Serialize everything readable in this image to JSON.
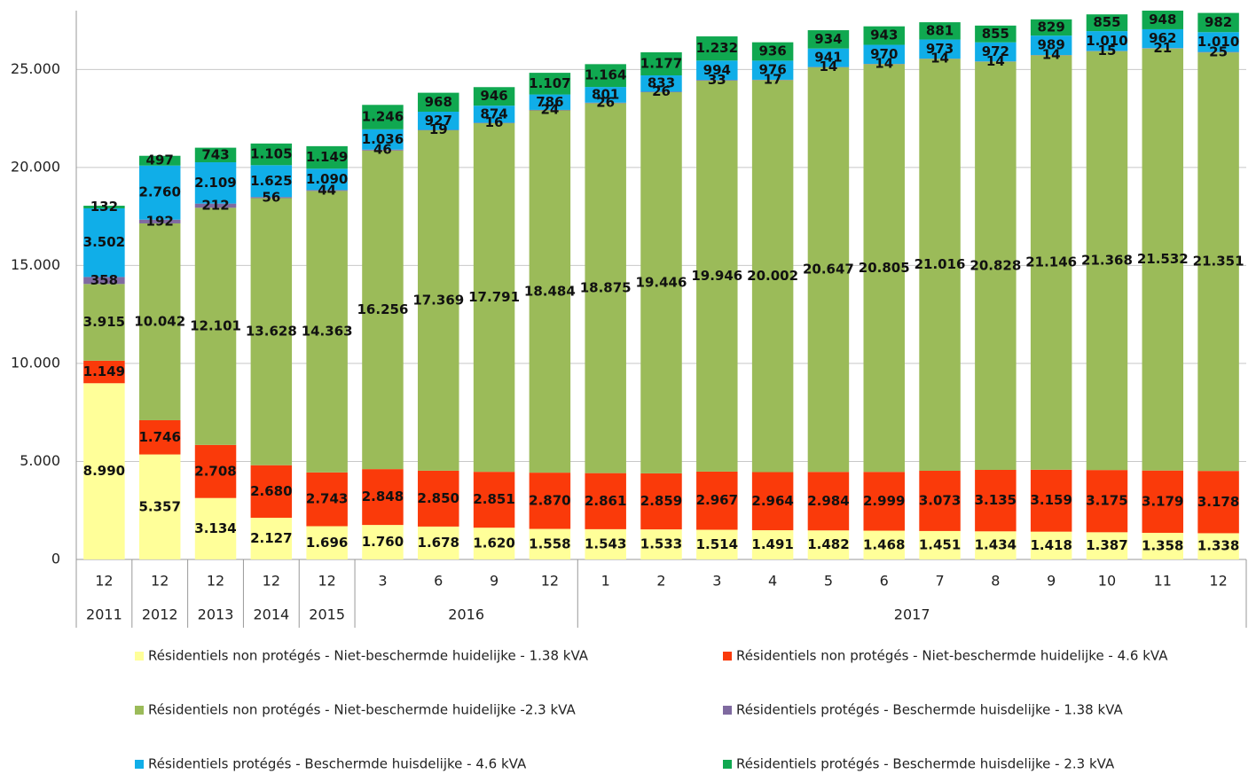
{
  "chart_data": {
    "type": "stacked_bar",
    "categories": [
      "12",
      "12",
      "12",
      "12",
      "12",
      "3",
      "6",
      "9",
      "12",
      "1",
      "2",
      "3",
      "4",
      "5",
      "6",
      "7",
      "8",
      "9",
      "10",
      "11",
      "12"
    ],
    "category_years": [
      "2011",
      "2012",
      "2013",
      "2014",
      "2015",
      "2016",
      "2016",
      "2016",
      "2016",
      "2017",
      "2017",
      "2017",
      "2017",
      "2017",
      "2017",
      "2017",
      "2017",
      "2017",
      "2017",
      "2017",
      "2017"
    ],
    "ylim": [
      0,
      28000
    ],
    "yticks": [
      0,
      {
        "value": 5000,
        "label": "5.000"
      },
      {
        "value": 10000,
        "label": "10.000"
      },
      {
        "value": 15000,
        "label": "15.000"
      },
      {
        "value": 20000,
        "label": "20.000"
      },
      {
        "value": 25000,
        "label": "25.000"
      }
    ],
    "grid": true,
    "legend": "bottom",
    "series": [
      {
        "name": "Résidentiels non protégés - Niet-beschermde huidelijke - 1.38 kVA",
        "color": "#ffff99",
        "values": [
          8990,
          5357,
          3134,
          2127,
          1696,
          1760,
          1678,
          1620,
          1558,
          1543,
          1533,
          1514,
          1491,
          1482,
          1468,
          1451,
          1434,
          1418,
          1387,
          1358,
          1338
        ],
        "value_labels": [
          "8.990",
          "5.357",
          "3.134",
          "2.127",
          "1.696",
          "1.760",
          "1.678",
          "1.620",
          "1.558",
          "1.543",
          "1.533",
          "1.514",
          "1.491",
          "1.482",
          "1.468",
          "1.451",
          "1.434",
          "1.418",
          "1.387",
          "1.358",
          "1.338"
        ]
      },
      {
        "name": "Résidentiels non protégés - Niet-beschermde huidelijke - 4.6 kVA",
        "color": "#fa3a0a",
        "values": [
          1149,
          1746,
          2708,
          2680,
          2743,
          2848,
          2850,
          2851,
          2870,
          2861,
          2859,
          2967,
          2964,
          2984,
          2999,
          3073,
          3135,
          3159,
          3175,
          3179,
          3178
        ],
        "value_labels": [
          "1.149",
          "1.746",
          "2.708",
          "2.680",
          "2.743",
          "2.848",
          "2.850",
          "2.851",
          "2.870",
          "2.861",
          "2.859",
          "2.967",
          "2.964",
          "2.984",
          "2.999",
          "3.073",
          "3.135",
          "3.159",
          "3.175",
          "3.179",
          "3.178"
        ]
      },
      {
        "name": "Résidentiels non protégés - Niet-beschermde huidelijke -2.3 kVA",
        "color": "#9bbb59",
        "values": [
          3915,
          10042,
          12101,
          13628,
          14363,
          16256,
          17369,
          17791,
          18484,
          18875,
          19446,
          19946,
          20002,
          20647,
          20805,
          21016,
          20828,
          21146,
          21368,
          21532,
          21351
        ],
        "value_labels": [
          "3.915",
          "10.042",
          "12.101",
          "13.628",
          "14.363",
          "16.256",
          "17.369",
          "17.791",
          "18.484",
          "18.875",
          "19.446",
          "19.946",
          "20.002",
          "20.647",
          "20.805",
          "21.016",
          "20.828",
          "21.146",
          "21.368",
          "21.532",
          "21.351"
        ]
      },
      {
        "name": "Résidentiels protégés - Beschermde huisdelijke - 1.38 kVA",
        "color": "#7f6aa0",
        "values": [
          358,
          192,
          212,
          56,
          44,
          46,
          19,
          16,
          24,
          26,
          26,
          33,
          17,
          14,
          14,
          14,
          14,
          14,
          15,
          21,
          25
        ]
      },
      {
        "name": "Résidentiels protégés - Beschermde huisdelijke - 4.6 kVA",
        "color": "#10aee8",
        "values": [
          3502,
          2760,
          2109,
          1625,
          1090,
          1036,
          927,
          874,
          786,
          801,
          833,
          994,
          976,
          941,
          970,
          973,
          972,
          989,
          1010,
          962,
          1010
        ],
        "value_labels": [
          "3.502",
          "2.760",
          "2.109",
          "1.625",
          "1.090",
          "1.036",
          "927",
          "874",
          "786",
          "801",
          "833",
          "994",
          "976",
          "941",
          "970",
          "973",
          "972",
          "989",
          "1.010",
          "962",
          "1.010"
        ]
      },
      {
        "name": "Résidentiels protégés - Beschermde huisdelijke - 2.3 kVA",
        "color": "#10a850",
        "values": [
          132,
          497,
          743,
          1105,
          1149,
          1246,
          968,
          946,
          1107,
          1164,
          1177,
          1232,
          936,
          934,
          943,
          881,
          855,
          829,
          855,
          948,
          982
        ],
        "value_labels": [
          "132",
          "497",
          "743",
          "1.105",
          "1.149",
          "1.246",
          "968",
          "946",
          "1.107",
          "1.164",
          "1.177",
          "1.232",
          "936",
          "934",
          "943",
          "881",
          "855",
          "829",
          "855",
          "948",
          "982"
        ]
      }
    ]
  }
}
